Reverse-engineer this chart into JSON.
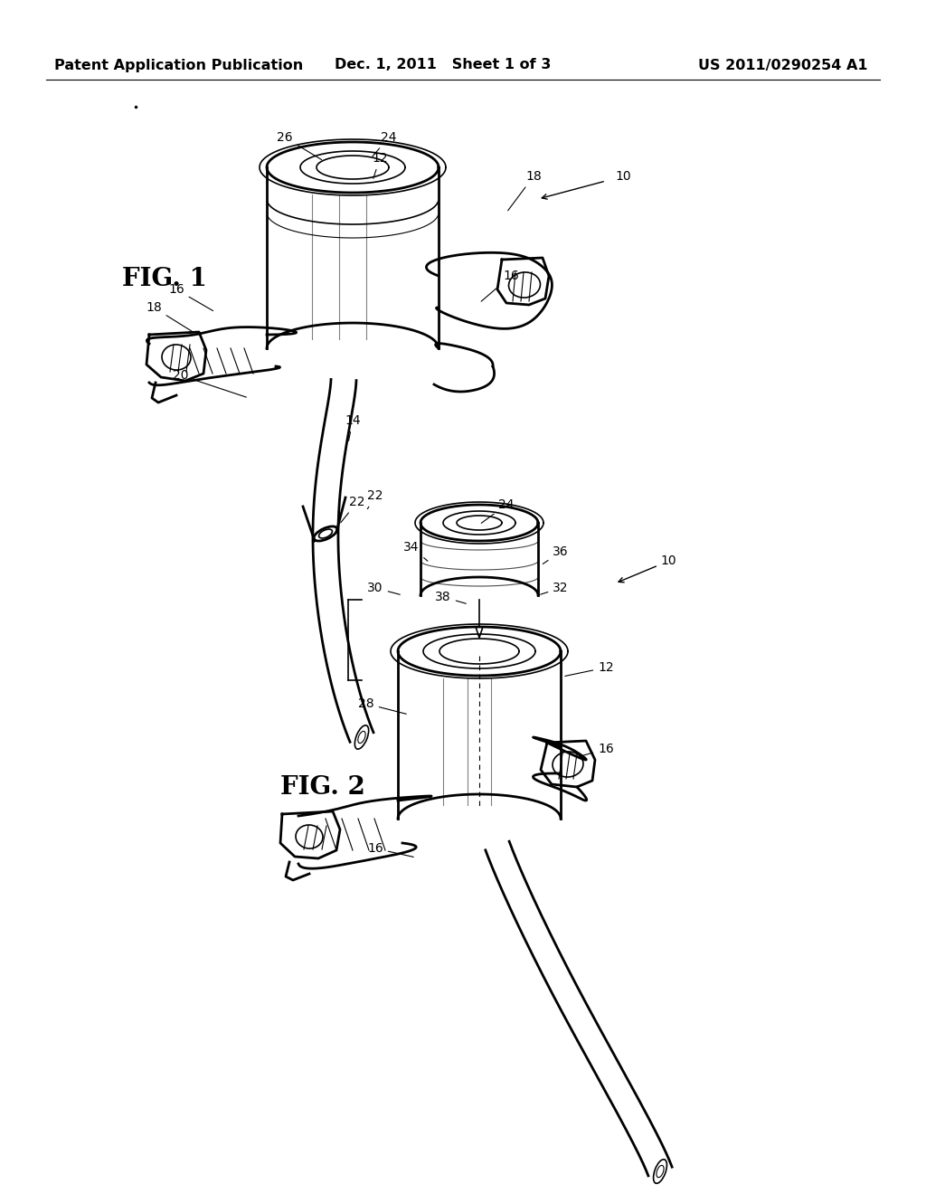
{
  "background_color": "#ffffff",
  "header_left": "Patent Application Publication",
  "header_center": "Dec. 1, 2011   Sheet 1 of 3",
  "header_right": "US 2011/0290254 A1",
  "header_fontsize": 11.5,
  "fig1_label": "FIG. 1",
  "fig2_label": "FIG. 2",
  "line_color": "#000000",
  "text_color": "#000000",
  "gray_fill": "#d8d8d8",
  "light_gray": "#eeeeee"
}
